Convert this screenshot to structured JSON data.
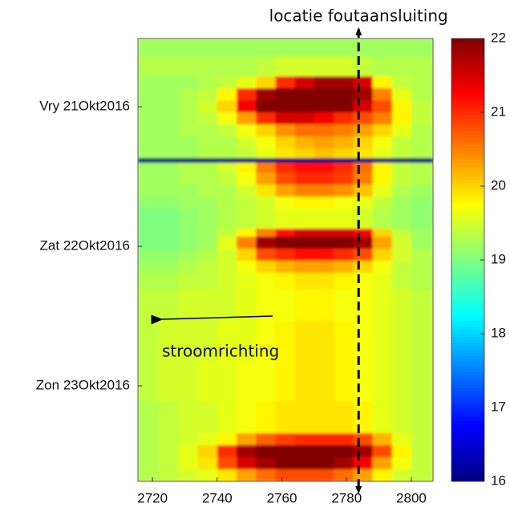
{
  "chart_data": {
    "type": "heatmap",
    "x": [
      2715.5,
      2722,
      2728,
      2734,
      2740,
      2746,
      2752,
      2758,
      2764,
      2770,
      2776,
      2782,
      2788,
      2794,
      2800,
      2806.7
    ],
    "y": [
      20.511,
      20.638,
      20.782,
      20.868,
      20.954,
      21.04,
      21.126,
      21.213,
      21.299,
      21.368,
      21.402,
      21.471,
      21.557,
      21.644,
      21.73,
      21.874,
      21.931,
      22.017,
      22.103,
      22.19,
      22.305,
      22.534,
      22.822,
      23.109,
      23.339,
      23.425,
      23.511,
      23.598,
      23.684
    ],
    "z": [
      [
        19.2,
        19.2,
        19.2,
        19.2,
        19.2,
        19.2,
        19.2,
        19.2,
        19.2,
        19.2,
        19.2,
        19.2,
        19.2,
        19.2,
        19.2
      ],
      [
        19.3,
        19.3,
        19.3,
        19.3,
        19.3,
        19.3,
        19.4,
        19.5,
        19.5,
        19.5,
        19.5,
        19.4,
        19.3,
        19.3,
        19.3
      ],
      [
        19.2,
        19.2,
        19.2,
        19.3,
        19.4,
        19.6,
        20,
        21,
        21.5,
        21.8,
        21.8,
        21.5,
        19.8,
        19.4,
        19.3
      ],
      [
        19.2,
        19.2,
        19.3,
        19.4,
        19.8,
        21,
        21.8,
        22,
        22,
        22,
        22,
        21.8,
        20.5,
        19.6,
        19.3
      ],
      [
        19.2,
        19.2,
        19.3,
        19.5,
        20,
        21.3,
        22,
        22,
        22,
        22,
        22,
        21.5,
        20.8,
        19.8,
        19.4
      ],
      [
        19.2,
        19.2,
        19.3,
        19.4,
        19.7,
        20.3,
        21,
        21.5,
        21.5,
        21.3,
        21,
        20.8,
        20.5,
        19.8,
        19.4
      ],
      [
        19.2,
        19.2,
        19.3,
        19.3,
        19.4,
        19.7,
        20,
        20.4,
        20.6,
        20.6,
        20.5,
        20.3,
        20,
        19.6,
        19.3
      ],
      [
        19.2,
        19.2,
        19.2,
        19.3,
        19.3,
        19.5,
        19.7,
        20,
        20.2,
        20.3,
        20.2,
        20,
        19.7,
        19.4,
        19.3
      ],
      [
        19.2,
        19.2,
        19.2,
        19.3,
        19.3,
        19.4,
        19.6,
        19.9,
        20,
        20.1,
        20,
        19.9,
        19.6,
        19.4,
        19.3
      ],
      [
        16,
        16,
        16,
        16,
        16,
        16,
        16,
        16,
        16,
        16,
        16,
        16,
        16,
        16,
        16
      ],
      [
        19.2,
        19.2,
        19.3,
        19.3,
        19.5,
        19.8,
        20.5,
        21,
        21.2,
        21.2,
        21,
        20.6,
        19.8,
        19.4,
        19.3
      ],
      [
        19.2,
        19.2,
        19.3,
        19.3,
        19.4,
        19.7,
        20.3,
        20.8,
        21,
        21,
        20.9,
        20.5,
        19.8,
        19.4,
        19.3
      ],
      [
        19.2,
        19.2,
        19.2,
        19.3,
        19.3,
        19.5,
        19.9,
        20.3,
        20.5,
        20.5,
        20.4,
        20.1,
        19.6,
        19.3,
        19.2
      ],
      [
        19.1,
        19.1,
        19.2,
        19.2,
        19.3,
        19.4,
        19.5,
        19.7,
        19.8,
        19.8,
        19.7,
        19.6,
        19.4,
        19.2,
        19.1
      ],
      [
        19,
        19,
        19.1,
        19.2,
        19.3,
        19.4,
        19.5,
        19.6,
        19.6,
        19.6,
        19.6,
        19.5,
        19.3,
        19.2,
        19.1
      ],
      [
        19,
        19,
        19.1,
        19.2,
        19.4,
        19.8,
        20.5,
        21.2,
        21.5,
        21.5,
        21.5,
        21.3,
        20,
        19.4,
        19.2
      ],
      [
        19,
        19,
        19.1,
        19.2,
        19.6,
        20.5,
        21.8,
        22,
        22,
        22,
        22,
        21.8,
        20.3,
        19.5,
        19.2
      ],
      [
        19.1,
        19.1,
        19.2,
        19.3,
        19.5,
        20,
        20.8,
        21,
        21.2,
        21.2,
        21,
        20.8,
        20,
        19.5,
        19.3
      ],
      [
        19.2,
        19.2,
        19.3,
        19.4,
        19.5,
        19.7,
        20,
        20.2,
        20.3,
        20.3,
        20.2,
        20,
        19.7,
        19.4,
        19.3
      ],
      [
        19.3,
        19.3,
        19.4,
        19.4,
        19.5,
        19.6,
        19.7,
        19.8,
        19.9,
        19.9,
        19.8,
        19.7,
        19.6,
        19.4,
        19.3
      ],
      [
        19.4,
        19.4,
        19.5,
        19.5,
        19.5,
        19.6,
        19.7,
        19.7,
        19.8,
        19.8,
        19.7,
        19.7,
        19.6,
        19.5,
        19.4
      ],
      [
        19.4,
        19.5,
        19.5,
        19.5,
        19.6,
        19.6,
        19.7,
        19.8,
        19.9,
        19.9,
        19.8,
        19.7,
        19.6,
        19.5,
        19.4
      ],
      [
        19.4,
        19.5,
        19.5,
        19.6,
        19.6,
        19.7,
        19.7,
        19.8,
        19.9,
        19.9,
        19.8,
        19.7,
        19.6,
        19.5,
        19.4
      ],
      [
        19.3,
        19.4,
        19.5,
        19.5,
        19.6,
        19.7,
        19.8,
        19.9,
        19.9,
        19.9,
        19.9,
        19.8,
        19.6,
        19.5,
        19.4
      ],
      [
        19.3,
        19.4,
        19.5,
        19.6,
        19.8,
        20.3,
        20.7,
        20.9,
        21,
        21,
        21,
        20.8,
        20.2,
        19.6,
        19.4
      ],
      [
        19.3,
        19.4,
        19.6,
        20,
        21,
        21.8,
        22,
        22,
        22,
        22,
        22,
        21.8,
        20.8,
        19.8,
        19.4
      ],
      [
        19.3,
        19.4,
        19.6,
        19.9,
        20.8,
        21.5,
        21.8,
        22,
        22,
        22,
        21.8,
        21.3,
        20.3,
        19.7,
        19.4
      ],
      [
        19.3,
        19.4,
        19.5,
        19.6,
        19.9,
        20.3,
        20.6,
        20.8,
        20.8,
        20.8,
        20.6,
        20.3,
        19.8,
        19.5,
        19.4
      ]
    ],
    "xlim": [
      2715.5,
      2806.7
    ],
    "xticks": [
      2720,
      2740,
      2760,
      2780,
      2800
    ],
    "ylim": [
      20.511,
      23.684
    ],
    "yticks": [
      {
        "value": 21,
        "label": "Vry 21Okt2016"
      },
      {
        "value": 22,
        "label": "Zat 22Okt2016"
      },
      {
        "value": 23,
        "label": "Zon 23Okt2016"
      }
    ],
    "clim": [
      16,
      22
    ],
    "cticks": [
      16,
      17,
      18,
      19,
      20,
      21,
      22
    ],
    "colormap": "jet",
    "marker_line": {
      "text": "locatie foutaansluiting",
      "x": 2783.7
    },
    "arrow_label": "stroomrichting"
  }
}
